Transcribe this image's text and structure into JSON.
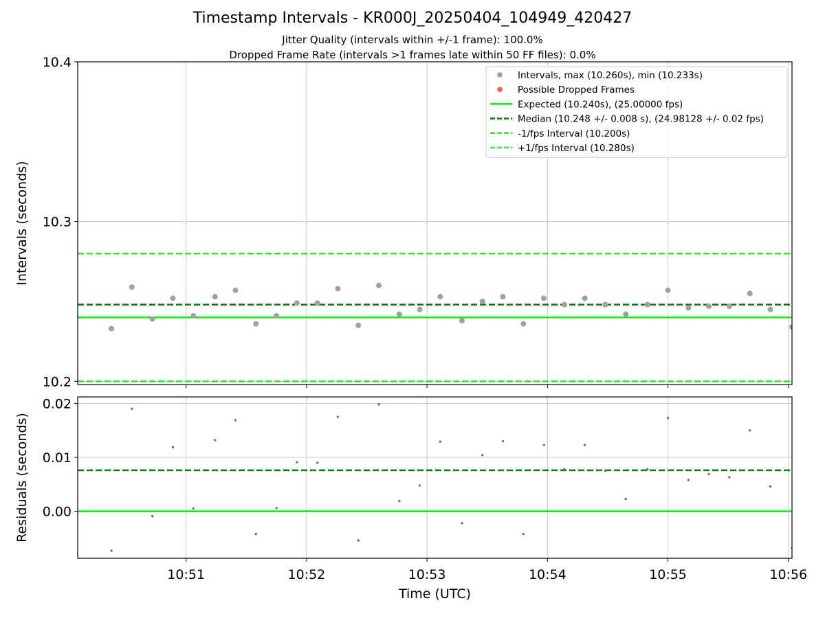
{
  "header": {
    "title": "Timestamp Intervals - KR000J_20250404_104949_420427",
    "subtitle_jitter": "Jitter Quality (intervals within +/-1 frame): 100.0%",
    "subtitle_dropped": "Dropped Frame Rate (intervals >1 frames late within 50 FF files): 0.0%"
  },
  "colors": {
    "points": "#a0a0a0",
    "dropped": "#f06060",
    "expected": "#00ee00",
    "median": "#007a00",
    "fps_bounds": "#22ee22",
    "residual_points": "#707070",
    "grid": "#c8c8c8"
  },
  "chart_data": [
    {
      "type": "scatter",
      "id": "intervals",
      "ylabel": "Intervals (seconds)",
      "xlabel": "",
      "ylim": [
        10.198,
        10.4
      ],
      "yticks": [
        "10.2",
        "10.3",
        "10.4"
      ],
      "ytick_values": [
        10.2,
        10.3,
        10.4
      ],
      "xlim_minutes": [
        50.1,
        56.03
      ],
      "xtick_minutes": [
        51,
        52,
        53,
        54,
        55,
        56
      ],
      "grid": true,
      "legend_position": "top-right",
      "legend": [
        {
          "label": "Intervals, max (10.260s), min (10.233s)",
          "kind": "point",
          "color": "#a0a0a0"
        },
        {
          "label": "Possible Dropped Frames",
          "kind": "point",
          "color": "#f06060"
        },
        {
          "label": "Expected (10.240s), (25.00000 fps)",
          "kind": "solid",
          "color": "#00ee00"
        },
        {
          "label": "Median (10.248 +/- 0.008 s), (24.98128 +/- 0.02 fps)",
          "kind": "dashed",
          "color": "#007a00"
        },
        {
          "label": "-1/fps Interval (10.200s)",
          "kind": "dashed",
          "color": "#22ee22"
        },
        {
          "label": "+1/fps Interval (10.280s)",
          "kind": "dashed",
          "color": "#22ee22"
        }
      ],
      "reference_lines": [
        {
          "name": "expected",
          "value": 10.24,
          "style": "solid",
          "color": "#00ee00"
        },
        {
          "name": "median",
          "value": 10.248,
          "style": "dashed",
          "color": "#007a00"
        },
        {
          "name": "minus-fps",
          "value": 10.2,
          "style": "dashed",
          "color": "#22ee22"
        },
        {
          "name": "plus-fps",
          "value": 10.28,
          "style": "dashed",
          "color": "#22ee22"
        }
      ],
      "x_minutes": [
        50.38,
        50.55,
        50.72,
        50.89,
        51.06,
        51.24,
        51.41,
        51.58,
        51.75,
        51.92,
        52.09,
        52.26,
        52.43,
        52.6,
        52.77,
        52.94,
        53.11,
        53.29,
        53.46,
        53.63,
        53.8,
        53.97,
        54.14,
        54.31,
        54.48,
        54.65,
        54.83,
        55.0,
        55.17,
        55.34,
        55.51,
        55.68,
        55.85,
        56.03
      ],
      "values": [
        10.233,
        10.259,
        10.239,
        10.252,
        10.241,
        10.253,
        10.257,
        10.236,
        10.241,
        10.249,
        10.249,
        10.258,
        10.235,
        10.26,
        10.242,
        10.245,
        10.253,
        10.238,
        10.25,
        10.253,
        10.236,
        10.252,
        10.248,
        10.252,
        10.248,
        10.242,
        10.248,
        10.257,
        10.246,
        10.247,
        10.247,
        10.255,
        10.245,
        10.234
      ],
      "dropped": []
    },
    {
      "type": "scatter",
      "id": "residuals",
      "ylabel": "Residuals (seconds)",
      "xlabel": "Time (UTC)",
      "ylim": [
        -0.0087,
        0.0212
      ],
      "yticks": [
        "0.00",
        "0.01",
        "0.02"
      ],
      "ytick_values": [
        0.0,
        0.01,
        0.02
      ],
      "xlim_minutes": [
        50.1,
        56.03
      ],
      "xtick_minutes": [
        51,
        52,
        53,
        54,
        55,
        56
      ],
      "xtick_labels": [
        "10:51",
        "10:52",
        "10:53",
        "10:54",
        "10:55",
        "10:56"
      ],
      "grid": true,
      "reference_lines": [
        {
          "name": "zero",
          "value": 0.0,
          "style": "solid",
          "color": "#00ee00"
        },
        {
          "name": "median",
          "value": 0.0076,
          "style": "dashed",
          "color": "#007a00"
        }
      ],
      "x_minutes": [
        50.38,
        50.55,
        50.72,
        50.89,
        51.06,
        51.24,
        51.41,
        51.58,
        51.75,
        51.92,
        52.09,
        52.26,
        52.43,
        52.6,
        52.77,
        52.94,
        53.11,
        53.29,
        53.46,
        53.63,
        53.8,
        53.97,
        54.14,
        54.31,
        54.48,
        54.65,
        54.83,
        55.0,
        55.17,
        55.34,
        55.51,
        55.68,
        55.85,
        56.03
      ],
      "values": [
        -0.0073,
        0.019,
        -0.0009,
        0.0119,
        0.0005,
        0.0132,
        0.0169,
        -0.0042,
        0.0006,
        0.0091,
        0.009,
        0.0175,
        -0.0054,
        0.0198,
        0.0019,
        0.0048,
        0.0129,
        -0.0022,
        0.0104,
        0.013,
        -0.0042,
        0.0123,
        0.0078,
        0.0123,
        0.0075,
        0.0023,
        0.0078,
        0.0173,
        0.0058,
        0.0069,
        0.0063,
        0.015,
        0.0046,
        -0.0068
      ]
    }
  ]
}
